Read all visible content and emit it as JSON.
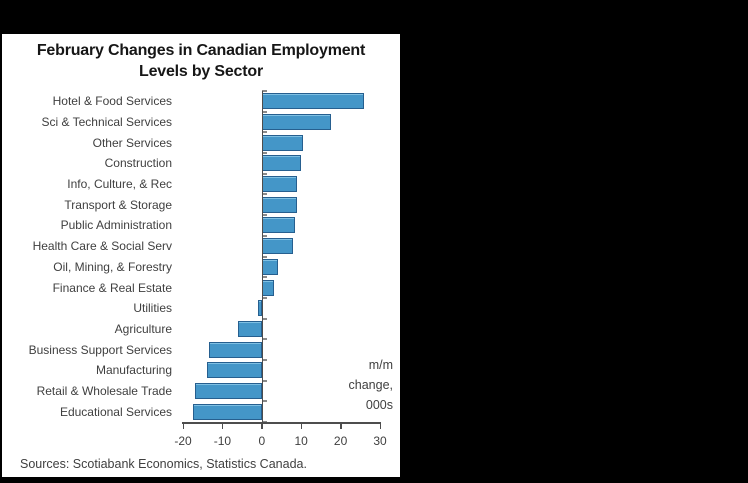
{
  "window": {
    "background_color": "#000000",
    "panel_color": "#ffffff"
  },
  "chart_data": {
    "type": "bar",
    "orientation": "horizontal",
    "title_lines": [
      "February Changes in Canadian Employment",
      "Levels by Sector"
    ],
    "categories": [
      "Hotel & Food Services",
      "Sci & Technical Services",
      "Other Services",
      "Construction",
      "Info, Culture, & Rec",
      "Transport & Storage",
      "Public Administration",
      "Health Care & Social Serv",
      "Oil, Mining, & Forestry",
      "Finance & Real Estate",
      "Utilities",
      "Agriculture",
      "Business Support Services",
      "Manufacturing",
      "Retail & Wholesale Trade",
      "Educational Services"
    ],
    "values": [
      26,
      17.5,
      10.5,
      10,
      9,
      9,
      8.5,
      8,
      4,
      3,
      -1,
      -6,
      -13.5,
      -14,
      -17,
      -17.5
    ],
    "xlim": [
      -20,
      30
    ],
    "x_ticks": [
      -20,
      -10,
      0,
      10,
      20,
      30
    ],
    "grid": false,
    "annotation_lines": [
      "m/m",
      "change,",
      "000s"
    ],
    "source": "Sources: Scotiabank Economics, Statistics Canada.",
    "bar_fill": "#4496C8",
    "bar_border": "#265F8F"
  }
}
